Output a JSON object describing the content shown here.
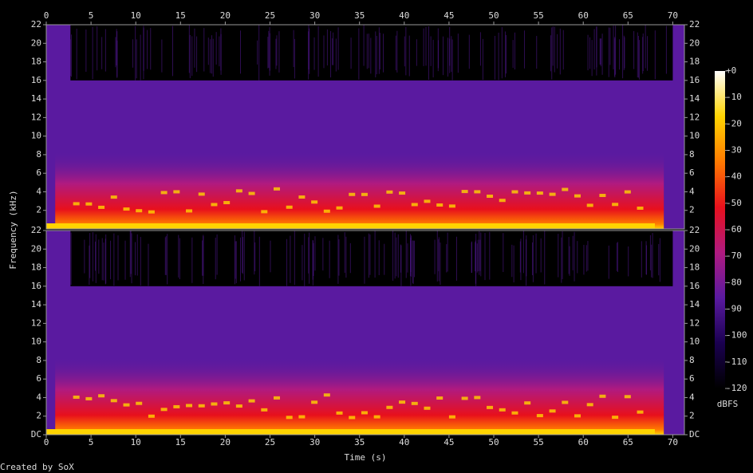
{
  "chart_data": {
    "type": "spectrogram",
    "x_label": "Time (s)",
    "y_label": "Frequency (kHz)",
    "xlim": [
      0,
      71.3
    ],
    "xticks": [
      0,
      5,
      10,
      15,
      20,
      25,
      30,
      35,
      40,
      45,
      50,
      55,
      60,
      65,
      70
    ],
    "ylim": [
      0,
      22
    ],
    "yticks": [
      {
        "value": 0,
        "label": "DC"
      },
      2,
      4,
      6,
      8,
      10,
      12,
      14,
      16,
      18,
      20,
      22
    ],
    "colormap": [
      "#000000",
      "#1a0050",
      "#5a1aa0",
      "#b01a80",
      "#e8101c",
      "#ff7a00",
      "#ffd400",
      "#ffffff"
    ],
    "colorbar": {
      "label": "dBFS",
      "lim": [
        -120,
        0
      ],
      "ticks": [
        {
          "value": 0,
          "label": "+0"
        },
        -10,
        -20,
        -30,
        -40,
        -50,
        -60,
        -70,
        -80,
        -90,
        -100,
        -110,
        -120
      ]
    },
    "credit": "Created by SoX"
  }
}
